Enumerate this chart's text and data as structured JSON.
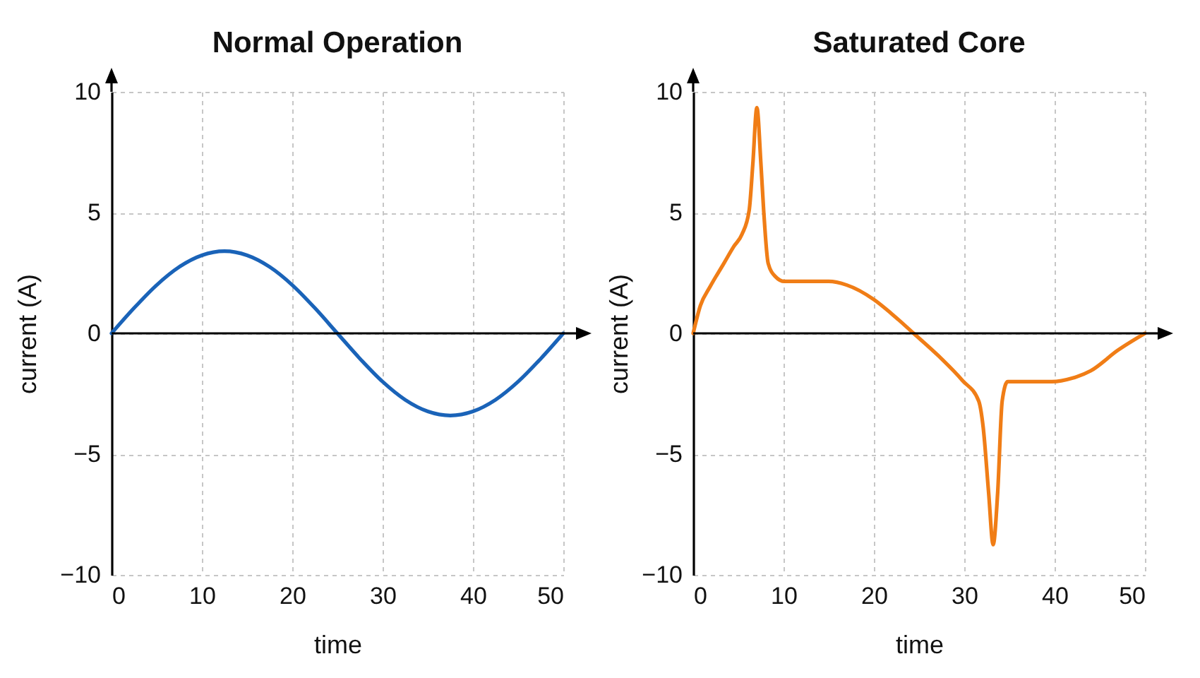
{
  "chart_data": [
    {
      "type": "line",
      "title": "Normal Operation",
      "xlabel": "time",
      "ylabel": "current (A)",
      "x": [
        0,
        2.5,
        5,
        7.5,
        10,
        12.5,
        15,
        17.5,
        20,
        22.5,
        25,
        27.5,
        30,
        32.5,
        35,
        37.5,
        40,
        42.5,
        45,
        47.5,
        50
      ],
      "series": [
        {
          "color": "#1a63b8",
          "values": [
            0,
            1.05,
            2.0,
            2.75,
            3.23,
            3.4,
            3.23,
            2.75,
            2.0,
            1.05,
            0,
            -1.05,
            -2.0,
            -2.75,
            -3.23,
            -3.4,
            -3.23,
            -2.75,
            -2.0,
            -1.05,
            0
          ]
        }
      ],
      "xlim": [
        0,
        50
      ],
      "ylim": [
        -10,
        10
      ],
      "xticks": [
        0,
        10,
        20,
        30,
        40,
        50
      ],
      "yticks": [
        -10,
        -5,
        0,
        5,
        10
      ],
      "grid": true,
      "line_style": "solid",
      "ref_lines": [
        {
          "axis": "y",
          "value": 0,
          "color": "#000000"
        }
      ]
    },
    {
      "type": "line",
      "title": "Saturated Core",
      "xlabel": "time",
      "ylabel": "current (A)",
      "x": [
        0,
        0.8,
        1.9,
        3.4,
        4.5,
        5.4,
        6.2,
        6.6,
        7.05,
        7.5,
        7.8,
        8.3,
        9.1,
        10.1,
        12,
        15,
        17,
        20,
        22,
        24.4,
        27.2,
        29.8,
        31.6,
        32.1,
        32.7,
        33.2,
        33.7,
        34.2,
        34.8,
        36.5,
        39.7,
        42,
        44,
        47,
        50
      ],
      "series": [
        {
          "color": "#f07d16",
          "values": [
            0,
            1.15,
            1.95,
            2.9,
            3.6,
            4.1,
            5.1,
            7.0,
            9.35,
            7.0,
            5.1,
            2.9,
            2.35,
            2.15,
            2.15,
            2.15,
            2.0,
            1.4,
            0.8,
            0,
            -0.95,
            -1.95,
            -2.8,
            -3.9,
            -6.6,
            -8.75,
            -6.6,
            -2.8,
            -2.0,
            -2.0,
            -2.0,
            -1.85,
            -1.55,
            -0.7,
            0
          ]
        }
      ],
      "xlim": [
        0,
        50
      ],
      "ylim": [
        -10,
        10
      ],
      "xticks": [
        0,
        10,
        20,
        30,
        40,
        50
      ],
      "yticks": [
        -10,
        -5,
        0,
        5,
        10
      ],
      "grid": true,
      "line_style": "solid",
      "ref_lines": [
        {
          "axis": "y",
          "value": 0,
          "color": "#000000"
        }
      ]
    }
  ]
}
